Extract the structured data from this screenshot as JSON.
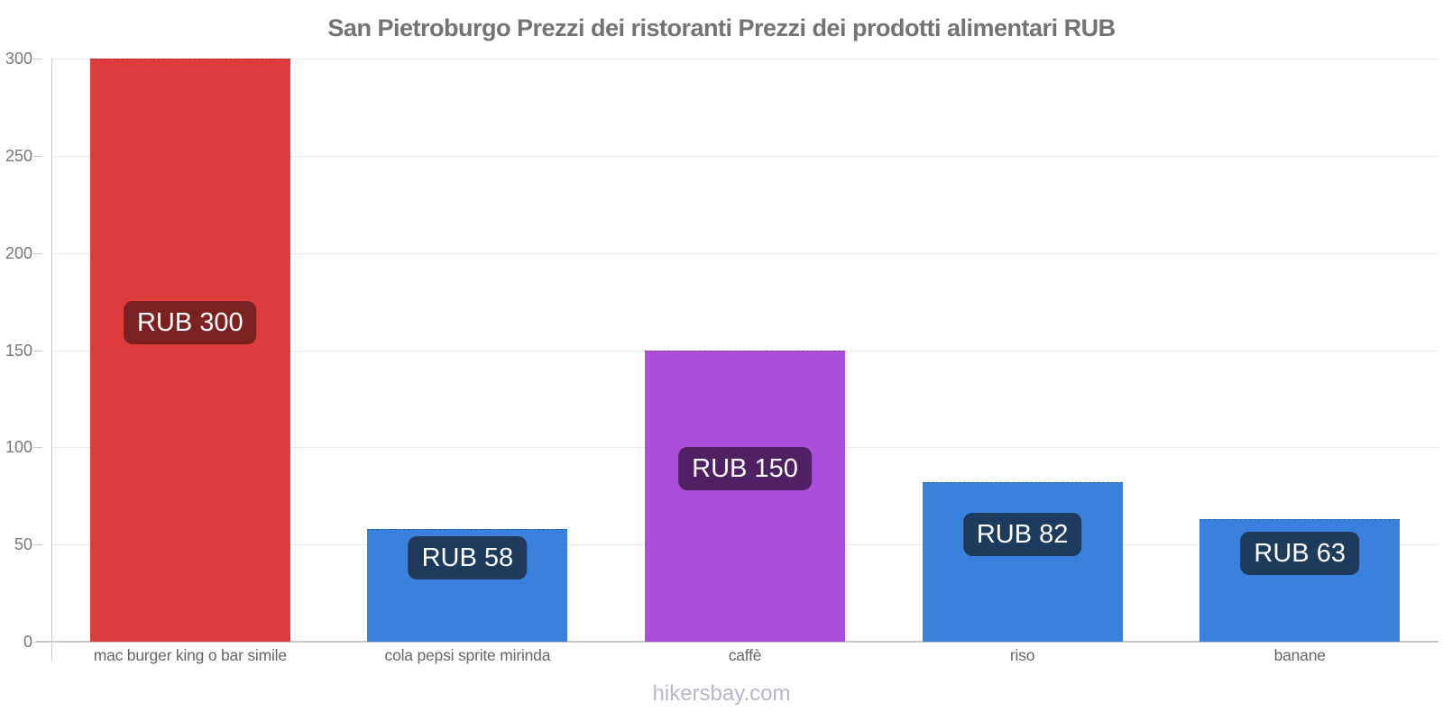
{
  "page": {
    "footer": "hikersbay.com"
  },
  "chart_data": {
    "type": "bar",
    "title": "San Pietroburgo Prezzi dei ristoranti Prezzi dei prodotti alimentari RUB",
    "currency": "RUB",
    "categories": [
      "mac burger king o bar simile",
      "cola pepsi sprite mirinda",
      "caffè",
      "riso",
      "banane"
    ],
    "values": [
      300,
      58,
      150,
      82,
      63
    ],
    "value_labels": [
      "RUB 300",
      "RUB 58",
      "RUB 150",
      "RUB 82",
      "RUB 63"
    ],
    "xlabel": "",
    "ylabel": "",
    "ylim": [
      0,
      300
    ],
    "yticks": [
      0,
      50,
      100,
      150,
      200,
      250,
      300
    ],
    "grid": true,
    "legend": "none",
    "bar_colors": [
      "#dc3c3c",
      "#3a80dd",
      "#ab4ed9",
      "#3a80dd",
      "#3a80dd"
    ],
    "badge_colors": [
      "#7b2121",
      "#1e3a5c",
      "#4f2164",
      "#1e3a5c",
      "#1e3a5c"
    ]
  },
  "colors": {
    "background": "#ffffff",
    "title_text": "#737373",
    "grid": "#ececec",
    "axis": "#c9c9c9",
    "y_tick_label": "#777777",
    "x_axis_label": "#666666",
    "badge_text": "#ffffff",
    "watermark": "#b9b7c9"
  }
}
